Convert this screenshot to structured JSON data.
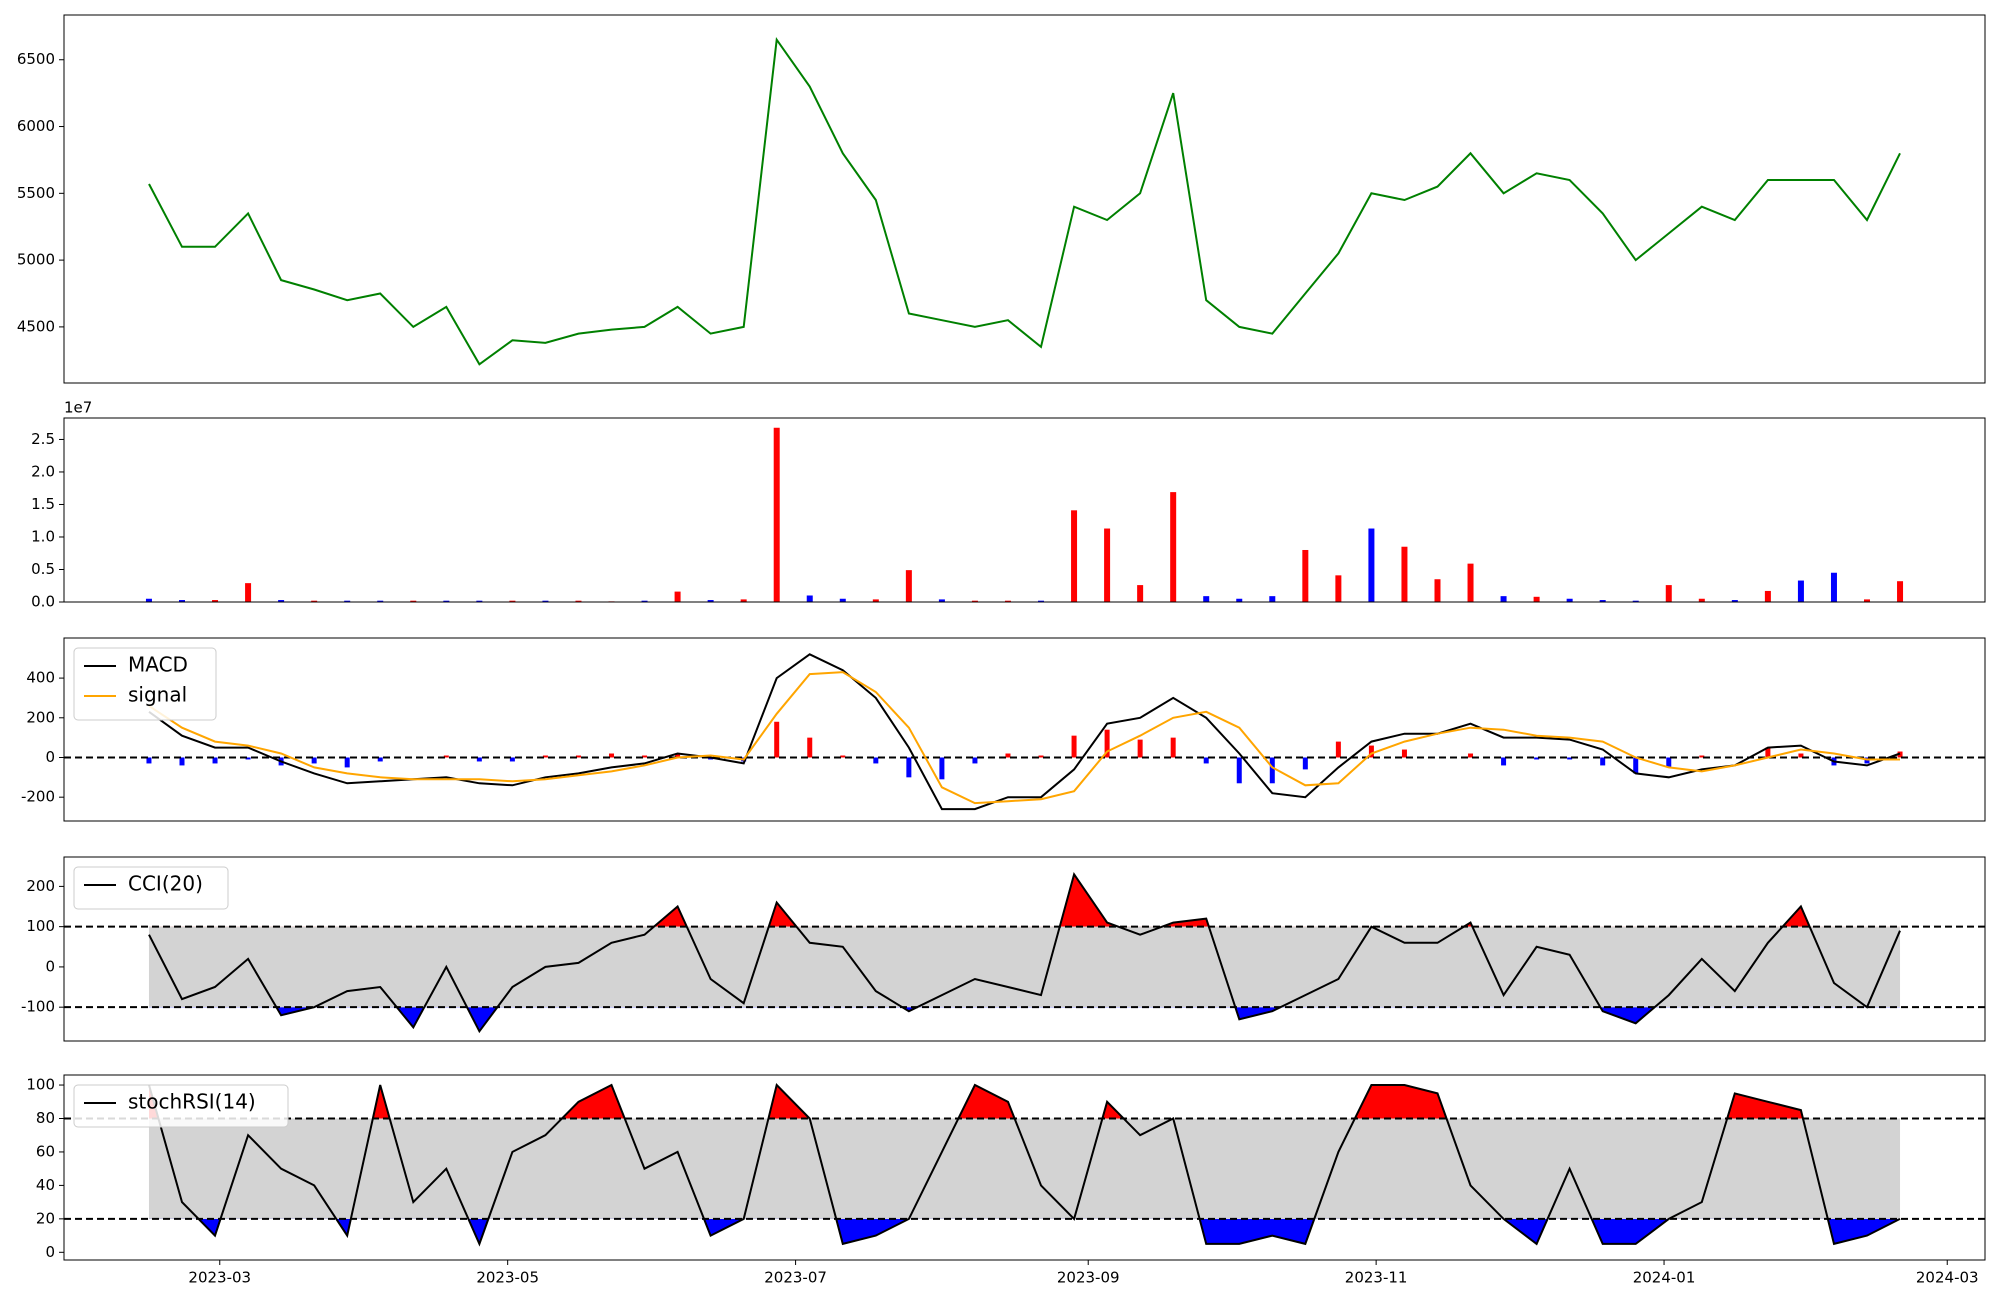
{
  "chart_data": [
    {
      "type": "line",
      "color": "green",
      "x": [
        "2023-02-14",
        "2023-02-21",
        "2023-02-28",
        "2023-03-07",
        "2023-03-14",
        "2023-03-21",
        "2023-03-28",
        "2023-04-04",
        "2023-04-11",
        "2023-04-18",
        "2023-04-25",
        "2023-05-02",
        "2023-05-09",
        "2023-05-16",
        "2023-05-23",
        "2023-05-30",
        "2023-06-06",
        "2023-06-13",
        "2023-06-20",
        "2023-06-27",
        "2023-07-04",
        "2023-07-11",
        "2023-07-18",
        "2023-07-25",
        "2023-08-01",
        "2023-08-08",
        "2023-08-15",
        "2023-08-22",
        "2023-08-29",
        "2023-09-05",
        "2023-09-12",
        "2023-09-19",
        "2023-09-26",
        "2023-10-03",
        "2023-10-10",
        "2023-10-17",
        "2023-10-24",
        "2023-10-31",
        "2023-11-07",
        "2023-11-14",
        "2023-11-21",
        "2023-11-28",
        "2023-12-05",
        "2023-12-12",
        "2023-12-19",
        "2023-12-26",
        "2024-01-02",
        "2024-01-09",
        "2024-01-16",
        "2024-01-23",
        "2024-01-30",
        "2024-02-06",
        "2024-02-13",
        "2024-02-20"
      ],
      "values": [
        5570,
        5100,
        5100,
        5350,
        4850,
        4780,
        4700,
        4750,
        4500,
        4650,
        4220,
        4400,
        4380,
        4450,
        4480,
        4500,
        4650,
        4450,
        4500,
        6650,
        6300,
        5800,
        5450,
        4600,
        4550,
        4500,
        4550,
        4350,
        5400,
        5300,
        5500,
        6250,
        4700,
        4500,
        4450,
        4750,
        5050,
        5500,
        5450,
        5550,
        5800,
        5500,
        5650,
        5600,
        5350,
        5000,
        5200,
        5400,
        5300,
        5600,
        5600,
        5600,
        5300,
        5800
      ],
      "xlim": [
        "2023-01-27",
        "2024-03-09"
      ],
      "ylim": [
        4080,
        6835
      ],
      "yticks": [
        4500,
        5000,
        5500,
        6000,
        6500
      ]
    },
    {
      "type": "bar",
      "offset_label": "1e7",
      "x": [
        "2023-02-14",
        "2023-02-21",
        "2023-02-28",
        "2023-03-07",
        "2023-03-14",
        "2023-03-21",
        "2023-03-28",
        "2023-04-04",
        "2023-04-11",
        "2023-04-18",
        "2023-04-25",
        "2023-05-02",
        "2023-05-09",
        "2023-05-16",
        "2023-05-23",
        "2023-05-30",
        "2023-06-06",
        "2023-06-13",
        "2023-06-20",
        "2023-06-27",
        "2023-07-04",
        "2023-07-11",
        "2023-07-18",
        "2023-07-25",
        "2023-08-01",
        "2023-08-08",
        "2023-08-15",
        "2023-08-22",
        "2023-08-29",
        "2023-09-05",
        "2023-09-12",
        "2023-09-19",
        "2023-09-26",
        "2023-10-03",
        "2023-10-10",
        "2023-10-17",
        "2023-10-24",
        "2023-10-31",
        "2023-11-07",
        "2023-11-14",
        "2023-11-21",
        "2023-11-28",
        "2023-12-05",
        "2023-12-12",
        "2023-12-19",
        "2023-12-26",
        "2024-01-02",
        "2024-01-09",
        "2024-01-16",
        "2024-01-23",
        "2024-01-30",
        "2024-02-06",
        "2024-02-13",
        "2024-02-20"
      ],
      "values": [
        500000,
        300000,
        300000,
        2900000,
        300000,
        200000,
        200000,
        200000,
        200000,
        200000,
        200000,
        200000,
        200000,
        200000,
        100000,
        200000,
        1600000,
        300000,
        400000,
        26800000,
        1000000,
        500000,
        400000,
        4900000,
        400000,
        200000,
        200000,
        200000,
        14100000,
        11300000,
        2600000,
        16900000,
        900000,
        500000,
        900000,
        8000000,
        4100000,
        11300000,
        8500000,
        3500000,
        5900000,
        900000,
        800000,
        500000,
        300000,
        200000,
        2600000,
        500000,
        300000,
        1700000,
        3300000,
        4500000,
        400000,
        3200000
      ],
      "colors": [
        "blue",
        "blue",
        "red",
        "red",
        "blue",
        "red",
        "blue",
        "blue",
        "red",
        "blue",
        "blue",
        "red",
        "blue",
        "red",
        "red",
        "blue",
        "red",
        "blue",
        "red",
        "red",
        "blue",
        "blue",
        "red",
        "red",
        "blue",
        "red",
        "red",
        "blue",
        "red",
        "red",
        "red",
        "red",
        "blue",
        "blue",
        "blue",
        "red",
        "red",
        "blue",
        "red",
        "red",
        "red",
        "blue",
        "red",
        "blue",
        "blue",
        "blue",
        "red",
        "red",
        "blue",
        "red",
        "blue",
        "blue",
        "red",
        "red"
      ],
      "xlim": [
        "2023-01-27",
        "2024-03-09"
      ],
      "ylim": [
        0,
        28300000
      ],
      "yticks": [
        {
          "value": 0,
          "label": "0.0"
        },
        {
          "value": 5000000,
          "label": "0.5"
        },
        {
          "value": 10000000,
          "label": "1.0"
        },
        {
          "value": 15000000,
          "label": "1.5"
        },
        {
          "value": 20000000,
          "label": "2.0"
        },
        {
          "value": 25000000,
          "label": "2.5"
        }
      ]
    },
    {
      "type": "combo",
      "legend": "upper left",
      "x": [
        "2023-02-14",
        "2023-02-21",
        "2023-02-28",
        "2023-03-07",
        "2023-03-14",
        "2023-03-21",
        "2023-03-28",
        "2023-04-04",
        "2023-04-11",
        "2023-04-18",
        "2023-04-25",
        "2023-05-02",
        "2023-05-09",
        "2023-05-16",
        "2023-05-23",
        "2023-05-30",
        "2023-06-06",
        "2023-06-13",
        "2023-06-20",
        "2023-06-27",
        "2023-07-04",
        "2023-07-11",
        "2023-07-18",
        "2023-07-25",
        "2023-08-01",
        "2023-08-08",
        "2023-08-15",
        "2023-08-22",
        "2023-08-29",
        "2023-09-05",
        "2023-09-12",
        "2023-09-19",
        "2023-09-26",
        "2023-10-03",
        "2023-10-10",
        "2023-10-17",
        "2023-10-24",
        "2023-10-31",
        "2023-11-07",
        "2023-11-14",
        "2023-11-21",
        "2023-11-28",
        "2023-12-05",
        "2023-12-12",
        "2023-12-19",
        "2023-12-26",
        "2024-01-02",
        "2024-01-09",
        "2024-01-16",
        "2024-01-23",
        "2024-01-30",
        "2024-02-06",
        "2024-02-13",
        "2024-02-20"
      ],
      "series": [
        {
          "name": "MACD",
          "color": "black",
          "values": [
            230,
            110,
            50,
            50,
            -20,
            -80,
            -130,
            -120,
            -110,
            -100,
            -130,
            -140,
            -100,
            -80,
            -50,
            -30,
            20,
            0,
            -30,
            400,
            520,
            440,
            300,
            50,
            -260,
            -260,
            -200,
            -200,
            -60,
            170,
            200,
            300,
            200,
            20,
            -180,
            -200,
            -50,
            80,
            120,
            120,
            170,
            100,
            100,
            90,
            40,
            -80,
            -100,
            -60,
            -40,
            50,
            60,
            -20,
            -40,
            20
          ]
        },
        {
          "name": "signal",
          "color": "orange",
          "values": [
            260,
            150,
            80,
            60,
            20,
            -50,
            -80,
            -100,
            -110,
            -110,
            -110,
            -120,
            -110,
            -90,
            -70,
            -40,
            0,
            10,
            -10,
            220,
            420,
            430,
            330,
            150,
            -150,
            -230,
            -220,
            -210,
            -170,
            30,
            110,
            200,
            230,
            150,
            -50,
            -140,
            -130,
            20,
            80,
            120,
            150,
            140,
            110,
            100,
            80,
            0,
            -50,
            -70,
            -40,
            0,
            40,
            20,
            -10,
            -10
          ]
        }
      ],
      "hist": {
        "values": [
          -30,
          -40,
          -30,
          -10,
          -40,
          -30,
          -50,
          -20,
          0,
          10,
          -20,
          -20,
          10,
          10,
          20,
          10,
          20,
          -10,
          -20,
          180,
          100,
          10,
          -30,
          -100,
          -110,
          -30,
          20,
          10,
          110,
          140,
          90,
          100,
          -30,
          -130,
          -130,
          -60,
          80,
          60,
          40,
          0,
          20,
          -40,
          -10,
          -10,
          -40,
          -80,
          -50,
          10,
          0,
          50,
          20,
          -40,
          -30,
          30
        ],
        "positive_color": "red",
        "negative_color": "blue"
      },
      "hlines": [
        0
      ],
      "xlim": [
        "2023-01-27",
        "2024-03-09"
      ],
      "ylim": [
        -320,
        602
      ],
      "yticks": [
        -200,
        0,
        200,
        400
      ]
    },
    {
      "type": "band",
      "legend": "upper left",
      "x": [
        "2023-02-14",
        "2023-02-21",
        "2023-02-28",
        "2023-03-07",
        "2023-03-14",
        "2023-03-21",
        "2023-03-28",
        "2023-04-04",
        "2023-04-11",
        "2023-04-18",
        "2023-04-25",
        "2023-05-02",
        "2023-05-09",
        "2023-05-16",
        "2023-05-23",
        "2023-05-30",
        "2023-06-06",
        "2023-06-13",
        "2023-06-20",
        "2023-06-27",
        "2023-07-04",
        "2023-07-11",
        "2023-07-18",
        "2023-07-25",
        "2023-08-01",
        "2023-08-08",
        "2023-08-15",
        "2023-08-22",
        "2023-08-29",
        "2023-09-05",
        "2023-09-12",
        "2023-09-19",
        "2023-09-26",
        "2023-10-03",
        "2023-10-10",
        "2023-10-17",
        "2023-10-24",
        "2023-10-31",
        "2023-11-07",
        "2023-11-14",
        "2023-11-21",
        "2023-11-28",
        "2023-12-05",
        "2023-12-12",
        "2023-12-19",
        "2023-12-26",
        "2024-01-02",
        "2024-01-09",
        "2024-01-16",
        "2024-01-23",
        "2024-01-30",
        "2024-02-06",
        "2024-02-13",
        "2024-02-20"
      ],
      "series": [
        {
          "name": "CCI(20)",
          "color": "black",
          "values": [
            80,
            -80,
            -50,
            20,
            -120,
            -100,
            -60,
            -50,
            -150,
            0,
            -160,
            -50,
            0,
            10,
            60,
            80,
            150,
            -30,
            -90,
            160,
            60,
            50,
            -60,
            -110,
            -70,
            -30,
            -50,
            -70,
            230,
            110,
            80,
            110,
            120,
            -130,
            -110,
            -70,
            -30,
            100,
            60,
            60,
            110,
            -70,
            50,
            30,
            -110,
            -140,
            -70,
            20,
            -60,
            60,
            150,
            -40,
            -100,
            90
          ]
        }
      ],
      "hlines": [
        100,
        -100
      ],
      "band_color": "lightgray",
      "above_color": "red",
      "below_color": "blue",
      "xlim": [
        "2023-01-27",
        "2024-03-09"
      ],
      "ylim": [
        -184,
        273
      ],
      "yticks": [
        -100,
        0,
        100,
        200
      ]
    },
    {
      "type": "band",
      "legend": "upper left",
      "x": [
        "2023-02-14",
        "2023-02-21",
        "2023-02-28",
        "2023-03-07",
        "2023-03-14",
        "2023-03-21",
        "2023-03-28",
        "2023-04-04",
        "2023-04-11",
        "2023-04-18",
        "2023-04-25",
        "2023-05-02",
        "2023-05-09",
        "2023-05-16",
        "2023-05-23",
        "2023-05-30",
        "2023-06-06",
        "2023-06-13",
        "2023-06-20",
        "2023-06-27",
        "2023-07-04",
        "2023-07-11",
        "2023-07-18",
        "2023-07-25",
        "2023-08-01",
        "2023-08-08",
        "2023-08-15",
        "2023-08-22",
        "2023-08-29",
        "2023-09-05",
        "2023-09-12",
        "2023-09-19",
        "2023-09-26",
        "2023-10-03",
        "2023-10-10",
        "2023-10-17",
        "2023-10-24",
        "2023-10-31",
        "2023-11-07",
        "2023-11-14",
        "2023-11-21",
        "2023-11-28",
        "2023-12-05",
        "2023-12-12",
        "2023-12-19",
        "2023-12-26",
        "2024-01-02",
        "2024-01-09",
        "2024-01-16",
        "2024-01-23",
        "2024-01-30",
        "2024-02-06",
        "2024-02-13",
        "2024-02-20"
      ],
      "series": [
        {
          "name": "stochRSI(14)",
          "color": "black",
          "values": [
            100,
            30,
            10,
            70,
            50,
            40,
            10,
            100,
            30,
            50,
            5,
            60,
            70,
            90,
            100,
            50,
            60,
            10,
            20,
            100,
            80,
            5,
            10,
            20,
            60,
            100,
            90,
            40,
            20,
            90,
            70,
            80,
            5,
            5,
            10,
            5,
            60,
            100,
            100,
            95,
            40,
            20,
            5,
            50,
            5,
            5,
            20,
            30,
            95,
            90,
            85,
            5,
            10,
            20
          ]
        }
      ],
      "hlines": [
        80,
        20
      ],
      "band_color": "lightgray",
      "above_color": "red",
      "below_color": "blue",
      "xlim": [
        "2023-01-27",
        "2024-03-09"
      ],
      "ylim": [
        -4.6,
        106
      ],
      "yticks": [
        0,
        20,
        40,
        60,
        80,
        100
      ],
      "xticks": [
        {
          "value": "2023-03-01",
          "label": "2023-03"
        },
        {
          "value": "2023-05-01",
          "label": "2023-05"
        },
        {
          "value": "2023-07-01",
          "label": "2023-07"
        },
        {
          "value": "2023-09-01",
          "label": "2023-09"
        },
        {
          "value": "2023-11-01",
          "label": "2023-11"
        },
        {
          "value": "2024-01-01",
          "label": "2024-01"
        },
        {
          "value": "2024-03-01",
          "label": "2024-03"
        }
      ]
    }
  ]
}
